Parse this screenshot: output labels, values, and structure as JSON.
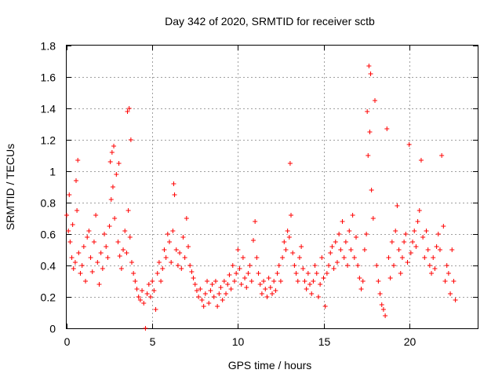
{
  "chart_data": {
    "type": "scatter",
    "title": "Day 342 of 2020, SRMTID for receiver sctb",
    "xlabel": "GPS time / hours",
    "ylabel": "SRMTID / TECUs",
    "xlim": [
      0,
      24
    ],
    "ylim": [
      0,
      1.8
    ],
    "xticks": [
      0,
      5,
      10,
      15,
      20
    ],
    "xtick_labels": [
      "0",
      "5",
      "10",
      "15",
      "20"
    ],
    "yticks": [
      0,
      0.2,
      0.4,
      0.6,
      0.8,
      1,
      1.2,
      1.4,
      1.6,
      1.8
    ],
    "ytick_labels": [
      "0",
      "0.2",
      "0.4",
      "0.6",
      "0.8",
      "1",
      "1.2",
      "1.4",
      "1.6",
      "1.8"
    ],
    "grid": true,
    "marker": "plus",
    "color": "#ff0000",
    "series": [
      {
        "name": "SRMTID",
        "points": [
          [
            0.0,
            0.72
          ],
          [
            0.1,
            0.62
          ],
          [
            0.15,
            0.85
          ],
          [
            0.2,
            0.55
          ],
          [
            0.3,
            0.45
          ],
          [
            0.35,
            0.66
          ],
          [
            0.4,
            0.38
          ],
          [
            0.5,
            0.42
          ],
          [
            0.55,
            0.94
          ],
          [
            0.6,
            0.75
          ],
          [
            0.65,
            1.07
          ],
          [
            0.7,
            0.48
          ],
          [
            0.8,
            0.35
          ],
          [
            0.9,
            0.4
          ],
          [
            1.0,
            0.52
          ],
          [
            1.1,
            0.3
          ],
          [
            1.2,
            0.58
          ],
          [
            1.3,
            0.62
          ],
          [
            1.4,
            0.45
          ],
          [
            1.5,
            0.36
          ],
          [
            1.6,
            0.55
          ],
          [
            1.7,
            0.72
          ],
          [
            1.8,
            0.42
          ],
          [
            1.9,
            0.28
          ],
          [
            2.0,
            0.48
          ],
          [
            2.1,
            0.38
          ],
          [
            2.2,
            0.6
          ],
          [
            2.3,
            0.52
          ],
          [
            2.4,
            0.45
          ],
          [
            2.5,
            0.65
          ],
          [
            2.55,
            1.06
          ],
          [
            2.6,
            0.82
          ],
          [
            2.65,
            1.12
          ],
          [
            2.7,
            0.9
          ],
          [
            2.75,
            1.16
          ],
          [
            2.8,
            0.7
          ],
          [
            2.9,
            0.98
          ],
          [
            3.0,
            0.55
          ],
          [
            3.05,
            1.05
          ],
          [
            3.1,
            0.46
          ],
          [
            3.2,
            0.38
          ],
          [
            3.3,
            0.5
          ],
          [
            3.4,
            0.62
          ],
          [
            3.5,
            0.48
          ],
          [
            3.55,
            1.38
          ],
          [
            3.6,
            0.75
          ],
          [
            3.65,
            1.4
          ],
          [
            3.7,
            0.58
          ],
          [
            3.75,
            1.2
          ],
          [
            3.8,
            0.42
          ],
          [
            3.9,
            0.35
          ],
          [
            4.0,
            0.3
          ],
          [
            4.1,
            0.25
          ],
          [
            4.2,
            0.2
          ],
          [
            4.3,
            0.18
          ],
          [
            4.4,
            0.24
          ],
          [
            4.5,
            0.16
          ],
          [
            4.6,
            0.0
          ],
          [
            4.7,
            0.22
          ],
          [
            4.8,
            0.28
          ],
          [
            4.9,
            0.2
          ],
          [
            5.0,
            0.3
          ],
          [
            5.1,
            0.24
          ],
          [
            5.2,
            0.12
          ],
          [
            5.3,
            0.35
          ],
          [
            5.4,
            0.42
          ],
          [
            5.5,
            0.3
          ],
          [
            5.6,
            0.38
          ],
          [
            5.7,
            0.5
          ],
          [
            5.8,
            0.45
          ],
          [
            5.9,
            0.6
          ],
          [
            6.0,
            0.55
          ],
          [
            6.1,
            0.42
          ],
          [
            6.2,
            0.62
          ],
          [
            6.25,
            0.92
          ],
          [
            6.3,
            0.85
          ],
          [
            6.4,
            0.5
          ],
          [
            6.5,
            0.4
          ],
          [
            6.6,
            0.48
          ],
          [
            6.7,
            0.38
          ],
          [
            6.8,
            0.58
          ],
          [
            6.9,
            0.45
          ],
          [
            7.0,
            0.7
          ],
          [
            7.1,
            0.52
          ],
          [
            7.2,
            0.4
          ],
          [
            7.3,
            0.36
          ],
          [
            7.4,
            0.32
          ],
          [
            7.5,
            0.28
          ],
          [
            7.6,
            0.24
          ],
          [
            7.7,
            0.2
          ],
          [
            7.8,
            0.25
          ],
          [
            7.9,
            0.18
          ],
          [
            8.0,
            0.14
          ],
          [
            8.1,
            0.22
          ],
          [
            8.2,
            0.3
          ],
          [
            8.3,
            0.16
          ],
          [
            8.4,
            0.24
          ],
          [
            8.5,
            0.28
          ],
          [
            8.6,
            0.2
          ],
          [
            8.7,
            0.3
          ],
          [
            8.8,
            0.14
          ],
          [
            8.9,
            0.22
          ],
          [
            9.0,
            0.26
          ],
          [
            9.1,
            0.18
          ],
          [
            9.2,
            0.3
          ],
          [
            9.3,
            0.22
          ],
          [
            9.4,
            0.28
          ],
          [
            9.5,
            0.34
          ],
          [
            9.6,
            0.25
          ],
          [
            9.7,
            0.4
          ],
          [
            9.8,
            0.3
          ],
          [
            9.9,
            0.35
          ],
          [
            10.0,
            0.5
          ],
          [
            10.1,
            0.38
          ],
          [
            10.2,
            0.28
          ],
          [
            10.3,
            0.45
          ],
          [
            10.4,
            0.32
          ],
          [
            10.5,
            0.26
          ],
          [
            10.6,
            0.35
          ],
          [
            10.7,
            0.4
          ],
          [
            10.8,
            0.3
          ],
          [
            10.9,
            0.56
          ],
          [
            11.0,
            0.68
          ],
          [
            11.1,
            0.45
          ],
          [
            11.2,
            0.35
          ],
          [
            11.3,
            0.28
          ],
          [
            11.4,
            0.22
          ],
          [
            11.5,
            0.3
          ],
          [
            11.6,
            0.25
          ],
          [
            11.7,
            0.2
          ],
          [
            11.8,
            0.32
          ],
          [
            11.9,
            0.26
          ],
          [
            12.0,
            0.22
          ],
          [
            12.1,
            0.3
          ],
          [
            12.2,
            0.24
          ],
          [
            12.3,
            0.35
          ],
          [
            12.4,
            0.4
          ],
          [
            12.5,
            0.3
          ],
          [
            12.6,
            0.45
          ],
          [
            12.7,
            0.55
          ],
          [
            12.8,
            0.5
          ],
          [
            12.9,
            0.62
          ],
          [
            13.0,
            0.58
          ],
          [
            13.05,
            1.05
          ],
          [
            13.1,
            0.72
          ],
          [
            13.2,
            0.48
          ],
          [
            13.3,
            0.4
          ],
          [
            13.4,
            0.35
          ],
          [
            13.5,
            0.3
          ],
          [
            13.6,
            0.45
          ],
          [
            13.7,
            0.52
          ],
          [
            13.8,
            0.38
          ],
          [
            13.9,
            0.3
          ],
          [
            14.0,
            0.25
          ],
          [
            14.1,
            0.35
          ],
          [
            14.2,
            0.28
          ],
          [
            14.3,
            0.22
          ],
          [
            14.4,
            0.3
          ],
          [
            14.5,
            0.4
          ],
          [
            14.6,
            0.35
          ],
          [
            14.7,
            0.2
          ],
          [
            14.8,
            0.28
          ],
          [
            14.9,
            0.45
          ],
          [
            15.0,
            0.32
          ],
          [
            15.1,
            0.14
          ],
          [
            15.2,
            0.35
          ],
          [
            15.3,
            0.4
          ],
          [
            15.4,
            0.48
          ],
          [
            15.5,
            0.52
          ],
          [
            15.6,
            0.38
          ],
          [
            15.7,
            0.55
          ],
          [
            15.8,
            0.42
          ],
          [
            15.9,
            0.6
          ],
          [
            16.0,
            0.5
          ],
          [
            16.1,
            0.68
          ],
          [
            16.2,
            0.45
          ],
          [
            16.3,
            0.55
          ],
          [
            16.4,
            0.4
          ],
          [
            16.5,
            0.62
          ],
          [
            16.6,
            0.5
          ],
          [
            16.7,
            0.72
          ],
          [
            16.8,
            0.45
          ],
          [
            16.9,
            0.58
          ],
          [
            17.0,
            0.4
          ],
          [
            17.1,
            0.32
          ],
          [
            17.2,
            0.25
          ],
          [
            17.3,
            0.3
          ],
          [
            17.4,
            0.5
          ],
          [
            17.5,
            0.6
          ],
          [
            17.55,
            1.38
          ],
          [
            17.6,
            1.1
          ],
          [
            17.65,
            1.67
          ],
          [
            17.7,
            1.25
          ],
          [
            17.75,
            1.62
          ],
          [
            17.8,
            0.88
          ],
          [
            17.9,
            0.7
          ],
          [
            18.0,
            1.45
          ],
          [
            18.1,
            0.4
          ],
          [
            18.2,
            0.3
          ],
          [
            18.3,
            0.22
          ],
          [
            18.4,
            0.15
          ],
          [
            18.5,
            0.12
          ],
          [
            18.6,
            0.08
          ],
          [
            18.7,
            1.27
          ],
          [
            18.8,
            0.45
          ],
          [
            18.9,
            0.32
          ],
          [
            19.0,
            0.55
          ],
          [
            19.1,
            0.4
          ],
          [
            19.2,
            0.62
          ],
          [
            19.3,
            0.78
          ],
          [
            19.4,
            0.5
          ],
          [
            19.5,
            0.35
          ],
          [
            19.6,
            0.45
          ],
          [
            19.7,
            0.55
          ],
          [
            19.8,
            0.6
          ],
          [
            19.9,
            0.42
          ],
          [
            20.0,
            1.17
          ],
          [
            20.1,
            0.48
          ],
          [
            20.2,
            0.55
          ],
          [
            20.3,
            0.62
          ],
          [
            20.4,
            0.52
          ],
          [
            20.5,
            0.68
          ],
          [
            20.6,
            0.75
          ],
          [
            20.7,
            1.07
          ],
          [
            20.8,
            0.58
          ],
          [
            20.9,
            0.45
          ],
          [
            21.0,
            0.62
          ],
          [
            21.1,
            0.5
          ],
          [
            21.2,
            0.4
          ],
          [
            21.3,
            0.35
          ],
          [
            21.4,
            0.45
          ],
          [
            21.5,
            0.38
          ],
          [
            21.6,
            0.52
          ],
          [
            21.7,
            0.6
          ],
          [
            21.8,
            0.5
          ],
          [
            21.9,
            1.1
          ],
          [
            22.0,
            0.65
          ],
          [
            22.1,
            0.3
          ],
          [
            22.2,
            0.4
          ],
          [
            22.3,
            0.35
          ],
          [
            22.4,
            0.22
          ],
          [
            22.5,
            0.5
          ],
          [
            22.6,
            0.3
          ],
          [
            22.7,
            0.18
          ]
        ]
      }
    ]
  }
}
